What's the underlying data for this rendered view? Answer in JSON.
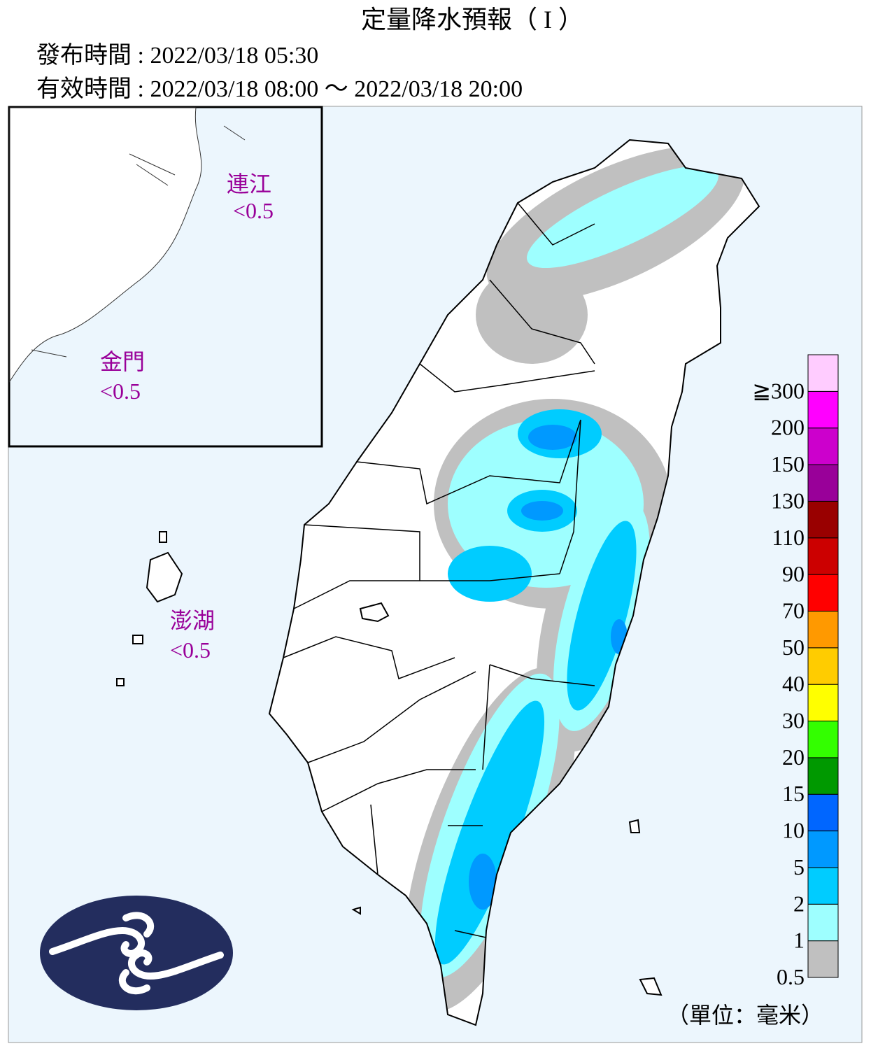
{
  "header": {
    "title": "定量降水預報（ I ）",
    "issued": "發布時間 : 2022/03/18 05:30",
    "valid": "有效時間 : 2022/03/18 08:00 ～ 2022/03/18 20:00"
  },
  "islands": [
    {
      "name": "連江",
      "value": "<0.5"
    },
    {
      "name": "金門",
      "value": "<0.5"
    },
    {
      "name": "澎湖",
      "value": "<0.5"
    }
  ],
  "legend": {
    "labels": [
      "0.5",
      "1",
      "2",
      "5",
      "10",
      "15",
      "20",
      "30",
      "40",
      "50",
      "70",
      "90",
      "110",
      "130",
      "150",
      "200",
      "≧300"
    ],
    "colors": [
      "#c0c0c0",
      "#9effff",
      "#00ccff",
      "#0099ff",
      "#0066ff",
      "#009900",
      "#33ff00",
      "#ffff00",
      "#ffcc00",
      "#ff9900",
      "#ff0000",
      "#cc0000",
      "#990000",
      "#990099",
      "#cc00cc",
      "#ff00ff",
      "#ffccff"
    ],
    "unit": "（單位：毫米）"
  }
}
